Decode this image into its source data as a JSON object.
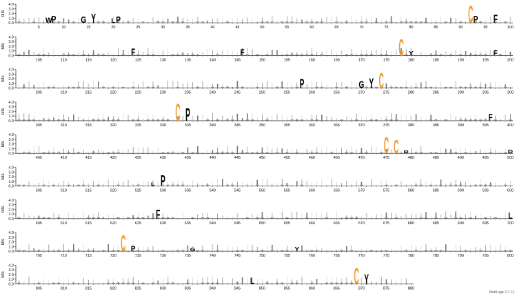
{
  "chart_data": {
    "type": "sequence-logo",
    "ylabel": "bits",
    "ylim": [
      0,
      4.0
    ],
    "y_ticks": [
      "0.0",
      "1.0",
      "2.0",
      "3.0",
      "4.0"
    ],
    "rows": [
      {
        "start": 1,
        "end": 100,
        "labels": [
          "5",
          "10",
          "15",
          "20",
          "25",
          "30",
          "35",
          "40",
          "45",
          "50",
          "55",
          "60",
          "65",
          "70",
          "75",
          "80",
          "85",
          "90",
          "95",
          "100"
        ],
        "letters": [
          {
            "pos": 7,
            "ch": "W",
            "h": 1.2,
            "color": "#000000"
          },
          {
            "pos": 8,
            "ch": "P",
            "h": 1.6,
            "color": "#000000"
          },
          {
            "pos": 14,
            "ch": "G",
            "h": 1.4,
            "color": "#000000"
          },
          {
            "pos": 16,
            "ch": "Y",
            "h": 2.0,
            "color": "#000000"
          },
          {
            "pos": 20,
            "ch": "L",
            "h": 1.0,
            "color": "#000000"
          },
          {
            "pos": 21,
            "ch": "P",
            "h": 1.4,
            "color": "#000000"
          },
          {
            "pos": 92,
            "ch": "C",
            "h": 3.8,
            "color": "#f39c2b"
          },
          {
            "pos": 93,
            "ch": "P",
            "h": 1.6,
            "color": "#000000"
          },
          {
            "pos": 97,
            "ch": "F",
            "h": 1.8,
            "color": "#000000"
          }
        ]
      },
      {
        "start": 101,
        "end": 200,
        "labels": [
          "105",
          "110",
          "115",
          "120",
          "125",
          "130",
          "135",
          "140",
          "145",
          "150",
          "155",
          "160",
          "165",
          "170",
          "175",
          "180",
          "185",
          "190",
          "195",
          "200"
        ],
        "letters": [
          {
            "pos": 124,
            "ch": "F",
            "h": 1.6,
            "color": "#000000"
          },
          {
            "pos": 146,
            "ch": "F",
            "h": 1.4,
            "color": "#000000"
          },
          {
            "pos": 178,
            "ch": "C",
            "h": 3.7,
            "color": "#f39c2b"
          },
          {
            "pos": 180,
            "ch": "Y",
            "h": 1.0,
            "color": "#000000"
          },
          {
            "pos": 197,
            "ch": "F",
            "h": 1.2,
            "color": "#000000"
          }
        ]
      },
      {
        "start": 201,
        "end": 300,
        "labels": [
          "205",
          "210",
          "215",
          "220",
          "225",
          "230",
          "235",
          "240",
          "245",
          "250",
          "255",
          "260",
          "265",
          "270",
          "275",
          "280",
          "285",
          "290",
          "295",
          "300"
        ],
        "letters": [
          {
            "pos": 258,
            "ch": "P",
            "h": 2.0,
            "color": "#000000"
          },
          {
            "pos": 270,
            "ch": "G",
            "h": 1.6,
            "color": "#000000"
          },
          {
            "pos": 272,
            "ch": "Y",
            "h": 2.2,
            "color": "#000000"
          },
          {
            "pos": 274,
            "ch": "C",
            "h": 3.4,
            "color": "#f39c2b"
          }
        ]
      },
      {
        "start": 301,
        "end": 400,
        "labels": [
          "305",
          "310",
          "315",
          "320",
          "325",
          "330",
          "335",
          "340",
          "345",
          "350",
          "355",
          "360",
          "365",
          "370",
          "375",
          "380",
          "385",
          "390",
          "395",
          "400"
        ],
        "letters": [
          {
            "pos": 333,
            "ch": "C",
            "h": 3.8,
            "color": "#f39c2b"
          },
          {
            "pos": 335,
            "ch": "P",
            "h": 2.8,
            "color": "#000000"
          },
          {
            "pos": 396,
            "ch": "F",
            "h": 1.6,
            "color": "#000000"
          }
        ]
      },
      {
        "start": 401,
        "end": 500,
        "labels": [
          "405",
          "410",
          "415",
          "420",
          "425",
          "430",
          "435",
          "440",
          "445",
          "450",
          "455",
          "460",
          "465",
          "470",
          "475",
          "480",
          "485",
          "490",
          "495",
          "500"
        ],
        "letters": [
          {
            "pos": 475,
            "ch": "C",
            "h": 3.6,
            "color": "#f39c2b"
          },
          {
            "pos": 477,
            "ch": "C",
            "h": 3.0,
            "color": "#f39c2b"
          },
          {
            "pos": 479,
            "ch": "R",
            "h": 0.6,
            "color": "#000000"
          },
          {
            "pos": 500,
            "ch": "D",
            "h": 0.8,
            "color": "#000000"
          }
        ]
      },
      {
        "start": 501,
        "end": 600,
        "labels": [
          "505",
          "510",
          "515",
          "520",
          "525",
          "530",
          "535",
          "540",
          "545",
          "550",
          "555",
          "560",
          "565",
          "570",
          "575",
          "580",
          "585",
          "590",
          "595",
          "600"
        ],
        "letters": [
          {
            "pos": 530,
            "ch": "P",
            "h": 2.4,
            "color": "#000000"
          },
          {
            "pos": 528,
            "ch": "L",
            "h": 0.8,
            "color": "#000000"
          }
        ]
      },
      {
        "start": 601,
        "end": 700,
        "labels": [
          "605",
          "610",
          "615",
          "620",
          "625",
          "630",
          "635",
          "640",
          "645",
          "650",
          "655",
          "660",
          "665",
          "670",
          "675",
          "680",
          "685",
          "690",
          "695",
          "700"
        ],
        "letters": [
          {
            "pos": 629,
            "ch": "F",
            "h": 2.0,
            "color": "#000000"
          },
          {
            "pos": 700,
            "ch": "L",
            "h": 1.4,
            "color": "#000000"
          }
        ]
      },
      {
        "start": 701,
        "end": 800,
        "labels": [
          "705",
          "710",
          "715",
          "720",
          "725",
          "730",
          "735",
          "740",
          "745",
          "750",
          "755",
          "760",
          "765",
          "770",
          "775",
          "780",
          "785",
          "790",
          "795",
          "800"
        ],
        "letters": [
          {
            "pos": 722,
            "ch": "C",
            "h": 3.6,
            "color": "#f39c2b"
          },
          {
            "pos": 724,
            "ch": "P",
            "h": 1.2,
            "color": "#000000"
          },
          {
            "pos": 736,
            "ch": "G",
            "h": 0.8,
            "color": "#000000"
          },
          {
            "pos": 757,
            "ch": "Y",
            "h": 0.9,
            "color": "#000000"
          }
        ]
      },
      {
        "start": 801,
        "end": 880,
        "labels": [
          "805",
          "810",
          "815",
          "820",
          "825",
          "830",
          "835",
          "840",
          "845",
          "850",
          "855",
          "860",
          "865",
          "870",
          "875",
          "880"
        ],
        "letters": [
          {
            "pos": 848,
            "ch": "L",
            "h": 1.4,
            "color": "#000000"
          },
          {
            "pos": 869,
            "ch": "C",
            "h": 3.6,
            "color": "#f39c2b"
          },
          {
            "pos": 871,
            "ch": "Y",
            "h": 2.2,
            "color": "#000000"
          }
        ]
      }
    ]
  },
  "footer": {
    "credit": "WebLogo 3.7.12"
  }
}
